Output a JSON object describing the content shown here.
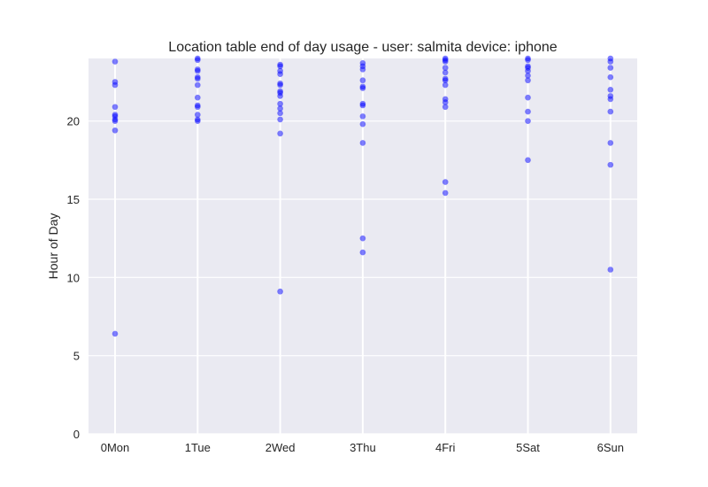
{
  "chart_data": {
    "type": "scatter",
    "title": "Location table end of day usage -  user: salmita device: iphone",
    "xlabel": "",
    "ylabel": "Hour of Day",
    "categories": [
      "0Mon",
      "1Tue",
      "2Wed",
      "3Thu",
      "4Fri",
      "5Sat",
      "6Sun"
    ],
    "ylim": [
      0,
      24
    ],
    "yticks": [
      "0",
      "5",
      "10",
      "15",
      "20"
    ],
    "grid": true,
    "legend": "none",
    "background_color": "#eaeaf2",
    "grid_color": "#ffffff",
    "point_color": "#0000ff",
    "point_opacity": 0.5,
    "series": [
      {
        "values": [
          [
            0,
            6.4
          ],
          [
            0,
            19.4
          ],
          [
            0,
            20.0
          ],
          [
            0,
            20.1
          ],
          [
            0,
            20.3
          ],
          [
            0,
            20.4
          ],
          [
            0,
            20.9
          ],
          [
            0,
            22.3
          ],
          [
            0,
            22.5
          ],
          [
            0,
            23.8
          ],
          [
            1,
            20.0
          ],
          [
            1,
            20.1
          ],
          [
            1,
            20.4
          ],
          [
            1,
            20.9
          ],
          [
            1,
            21.0
          ],
          [
            1,
            21.5
          ],
          [
            1,
            22.3
          ],
          [
            1,
            22.7
          ],
          [
            1,
            22.8
          ],
          [
            1,
            23.2
          ],
          [
            1,
            23.3
          ],
          [
            1,
            23.9
          ],
          [
            1,
            24.0
          ],
          [
            2,
            9.1
          ],
          [
            2,
            19.2
          ],
          [
            2,
            20.1
          ],
          [
            2,
            20.5
          ],
          [
            2,
            20.8
          ],
          [
            2,
            21.1
          ],
          [
            2,
            21.6
          ],
          [
            2,
            21.8
          ],
          [
            2,
            21.9
          ],
          [
            2,
            22.3
          ],
          [
            2,
            22.4
          ],
          [
            2,
            23.0
          ],
          [
            2,
            23.2
          ],
          [
            2,
            23.5
          ],
          [
            2,
            23.6
          ],
          [
            3,
            11.6
          ],
          [
            3,
            12.5
          ],
          [
            3,
            18.6
          ],
          [
            3,
            19.8
          ],
          [
            3,
            20.3
          ],
          [
            3,
            21.0
          ],
          [
            3,
            21.1
          ],
          [
            3,
            22.1
          ],
          [
            3,
            22.2
          ],
          [
            3,
            22.6
          ],
          [
            3,
            23.3
          ],
          [
            3,
            23.5
          ],
          [
            3,
            23.7
          ],
          [
            4,
            15.4
          ],
          [
            4,
            16.1
          ],
          [
            4,
            20.9
          ],
          [
            4,
            21.2
          ],
          [
            4,
            21.4
          ],
          [
            4,
            22.3
          ],
          [
            4,
            22.6
          ],
          [
            4,
            22.7
          ],
          [
            4,
            23.1
          ],
          [
            4,
            23.4
          ],
          [
            4,
            23.8
          ],
          [
            4,
            23.9
          ],
          [
            4,
            24.0
          ],
          [
            5,
            17.5
          ],
          [
            5,
            20.0
          ],
          [
            5,
            20.6
          ],
          [
            5,
            21.5
          ],
          [
            5,
            22.6
          ],
          [
            5,
            22.9
          ],
          [
            5,
            23.2
          ],
          [
            5,
            23.4
          ],
          [
            5,
            23.5
          ],
          [
            5,
            23.9
          ],
          [
            5,
            24.0
          ],
          [
            6,
            10.5
          ],
          [
            6,
            17.2
          ],
          [
            6,
            18.6
          ],
          [
            6,
            20.6
          ],
          [
            6,
            21.4
          ],
          [
            6,
            21.6
          ],
          [
            6,
            22.0
          ],
          [
            6,
            22.8
          ],
          [
            6,
            23.4
          ],
          [
            6,
            23.8
          ],
          [
            6,
            24.0
          ]
        ]
      }
    ]
  }
}
